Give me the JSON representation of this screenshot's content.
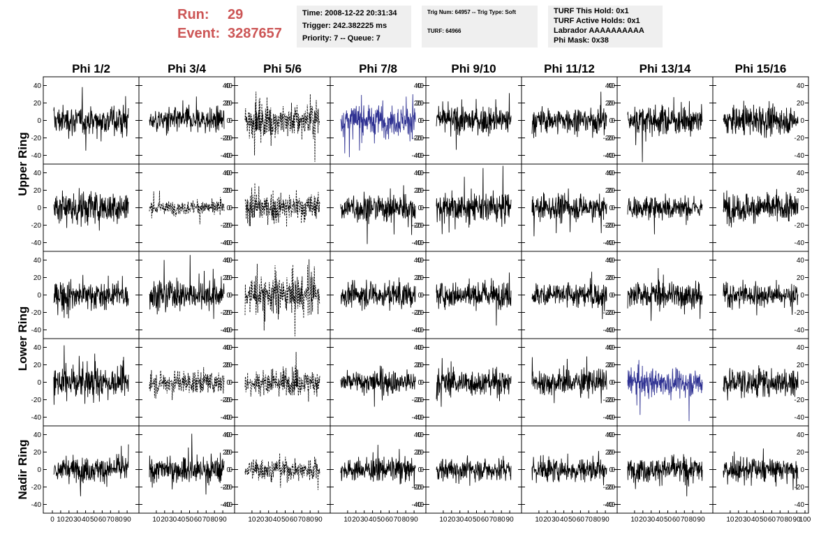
{
  "header": {
    "run_label": "Run:",
    "run_value": "29",
    "event_label": "Event:",
    "event_value": "3287657"
  },
  "time_box": {
    "time": "Time: 2008-12-22 20:31:34",
    "trigger": "Trigger: 242.382225 ms",
    "priority": "Priority: 7 -- Queue: 7"
  },
  "trig_box": {
    "trig": "Trig Num: 64957 -- Trig Type: Soft",
    "turf": "TURF: 64966"
  },
  "turf_box": {
    "hold": "TURF This Hold: 0x1",
    "active": "TURF Active Holds: 0x1",
    "labrador": "Labrador AAAAAAAAAA",
    "phimask": "Phi Mask: 0x38"
  },
  "colors": {
    "accent": "#cc5555",
    "trace": "#000000",
    "highlight": "#2e3192",
    "panel_bg": "#efefef"
  },
  "chart_data": {
    "type": "line",
    "columns": [
      "Phi 1/2",
      "Phi 3/4",
      "Phi 5/6",
      "Phi 7/8",
      "Phi 9/10",
      "Phi 11/12",
      "Phi 13/14",
      "Phi 15/16"
    ],
    "ring_labels": [
      {
        "text": "Upper Ring",
        "rows": [
          0,
          1
        ]
      },
      {
        "text": "Lower Ring",
        "rows": [
          2,
          3
        ]
      },
      {
        "text": "Nadir Ring",
        "rows": [
          4
        ]
      }
    ],
    "ylim": [
      -50,
      50
    ],
    "yticks": [
      -40,
      -20,
      0,
      20,
      40
    ],
    "xlim": [
      0,
      100
    ],
    "xtick_labels": [
      "0",
      "10",
      "20",
      "30",
      "40",
      "50",
      "60",
      "70",
      "80",
      "90",
      "100"
    ],
    "samples_per_trace": 260,
    "traces": [
      [
        {
          "amp": 13,
          "style": "solid",
          "color": "trace"
        },
        {
          "amp": 11,
          "style": "solid",
          "color": "trace"
        },
        {
          "amp": 15,
          "style": "dashed",
          "color": "trace"
        },
        {
          "amp": 14,
          "style": "solid",
          "color": "highlight"
        },
        {
          "amp": 12,
          "style": "solid",
          "color": "trace"
        },
        {
          "amp": 11,
          "style": "solid",
          "color": "trace"
        },
        {
          "amp": 13,
          "style": "solid",
          "color": "trace"
        },
        {
          "amp": 12,
          "style": "solid",
          "color": "trace"
        }
      ],
      [
        {
          "amp": 15,
          "style": "solid",
          "color": "trace"
        },
        {
          "amp": 6,
          "style": "dashed",
          "color": "trace"
        },
        {
          "amp": 12,
          "style": "dashed",
          "color": "trace"
        },
        {
          "amp": 13,
          "style": "solid",
          "color": "trace"
        },
        {
          "amp": 13,
          "style": "solid",
          "color": "trace"
        },
        {
          "amp": 11,
          "style": "solid",
          "color": "trace"
        },
        {
          "amp": 10,
          "style": "solid",
          "color": "trace"
        },
        {
          "amp": 13,
          "style": "solid",
          "color": "trace"
        }
      ],
      [
        {
          "amp": 12,
          "style": "solid",
          "color": "trace"
        },
        {
          "amp": 13,
          "style": "solid",
          "color": "trace"
        },
        {
          "amp": 17,
          "style": "dashed",
          "color": "trace"
        },
        {
          "amp": 11,
          "style": "solid",
          "color": "trace"
        },
        {
          "amp": 11,
          "style": "solid",
          "color": "trace"
        },
        {
          "amp": 11,
          "style": "solid",
          "color": "trace"
        },
        {
          "amp": 12,
          "style": "solid",
          "color": "trace"
        },
        {
          "amp": 10,
          "style": "solid",
          "color": "trace"
        }
      ],
      [
        {
          "amp": 14,
          "style": "solid",
          "color": "trace"
        },
        {
          "amp": 10,
          "style": "dashed",
          "color": "trace"
        },
        {
          "amp": 11,
          "style": "dashed",
          "color": "trace"
        },
        {
          "amp": 11,
          "style": "solid",
          "color": "trace"
        },
        {
          "amp": 11,
          "style": "solid",
          "color": "trace"
        },
        {
          "amp": 11,
          "style": "solid",
          "color": "trace"
        },
        {
          "amp": 12,
          "style": "solid",
          "color": "highlight"
        },
        {
          "amp": 13,
          "style": "solid",
          "color": "trace"
        }
      ],
      [
        {
          "amp": 11,
          "style": "solid",
          "color": "trace"
        },
        {
          "amp": 12,
          "style": "solid",
          "color": "trace"
        },
        {
          "amp": 9,
          "style": "dashed",
          "color": "trace"
        },
        {
          "amp": 10,
          "style": "solid",
          "color": "trace"
        },
        {
          "amp": 10,
          "style": "solid",
          "color": "trace"
        },
        {
          "amp": 11,
          "style": "solid",
          "color": "trace"
        },
        {
          "amp": 11,
          "style": "solid",
          "color": "trace"
        },
        {
          "amp": 10,
          "style": "solid",
          "color": "trace"
        }
      ]
    ]
  }
}
